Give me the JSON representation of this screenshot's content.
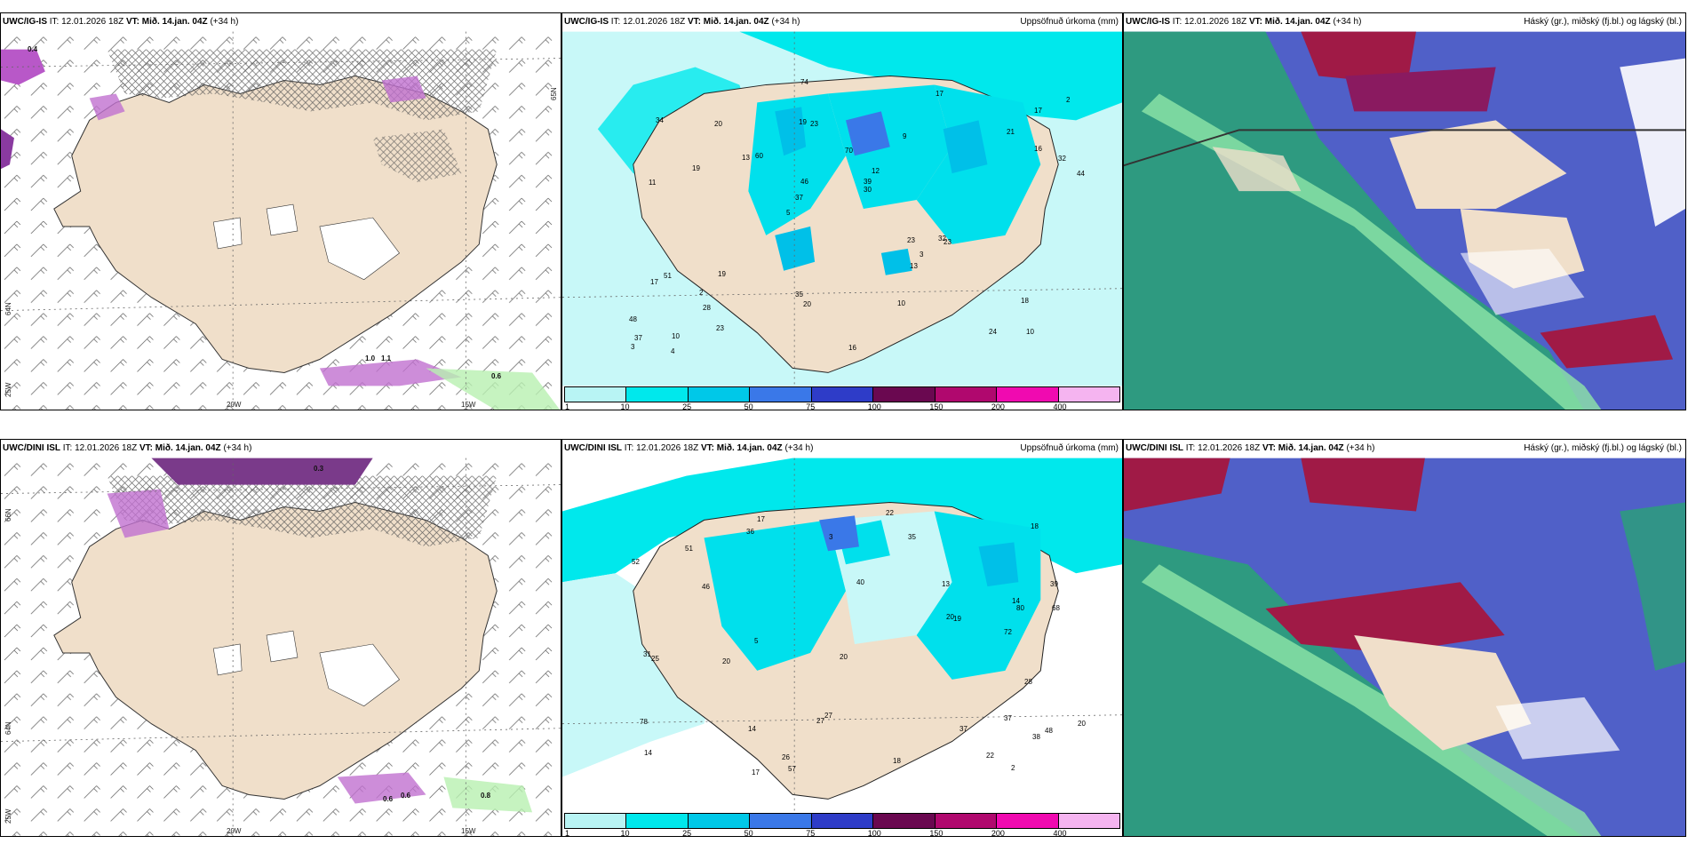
{
  "panels": {
    "tl": {
      "model": "UWC/IG-IS",
      "it": "IT: 12.01.2026 18Z",
      "vt": "VT: Mið. 14.jan. 04Z",
      "lead": "(+34 h)"
    },
    "tm": {
      "model": "UWC/IG-IS",
      "it": "IT: 12.01.2026 18Z",
      "vt": "VT: Mið. 14.jan. 04Z",
      "lead": "(+34 h)",
      "right": "Uppsöfnuð úrkoma (mm)"
    },
    "tr": {
      "model": "UWC/IG-IS",
      "it": "IT: 12.01.2026 18Z",
      "vt": "VT: Mið. 14.jan. 04Z",
      "lead": "(+34 h)",
      "right": "Háský (gr.), miðský (fj.bl.) og lágský (bl.)"
    },
    "bl": {
      "model": "UWC/DINI ISL",
      "it": "IT: 12.01.2026 18Z",
      "vt": "VT: Mið. 14.jan. 04Z",
      "lead": "(+34 h)"
    },
    "bm": {
      "model": "UWC/DINI ISL",
      "it": "IT: 12.01.2026 18Z",
      "vt": "VT: Mið. 14.jan. 04Z",
      "lead": "(+34 h)",
      "right": "Uppsöfnuð úrkoma (mm)"
    },
    "br": {
      "model": "UWC/DINI ISL",
      "it": "IT: 12.01.2026 18Z",
      "vt": "VT: Mið. 14.jan. 04Z",
      "lead": "(+34 h)",
      "right": "Háský (gr.), miðský (fj.bl.) og lágský (bl.)"
    }
  },
  "axes": {
    "lat65": "65N",
    "lat64": "64N",
    "lat66": "66N",
    "lon25": "25W",
    "lon20": "20W",
    "lon15": "15W"
  },
  "colorbar": {
    "labels": [
      "1",
      "10",
      "25",
      "50",
      "75",
      "100",
      "150",
      "200",
      "400"
    ],
    "colors": [
      "#b8f4f4",
      "#00e8ec",
      "#00c8e8",
      "#3a78e8",
      "#2e3cc8",
      "#6a0850",
      "#b0086e",
      "#f00ab0",
      "#f5b4f0"
    ]
  },
  "wind_values": {
    "tl": [
      "0.4",
      "1.0",
      "1.1",
      "0.6"
    ],
    "bl": [
      "0.3",
      "0.6",
      "0.6",
      "0.8"
    ]
  },
  "precip_values": {
    "tm": [
      "10",
      "11",
      "17",
      "5",
      "9",
      "10",
      "19",
      "70",
      "51",
      "60",
      "48",
      "28",
      "23",
      "12",
      "23",
      "34",
      "74",
      "44",
      "23",
      "16",
      "37",
      "35",
      "46",
      "20",
      "17",
      "19",
      "24",
      "18",
      "32",
      "16",
      "13",
      "19",
      "13",
      "23",
      "32",
      "39",
      "37",
      "20",
      "30",
      "17",
      "21",
      "2",
      "3",
      "10",
      "2",
      "4",
      "3"
    ],
    "bm": [
      "37",
      "39",
      "48",
      "40",
      "14",
      "17",
      "14",
      "14",
      "18",
      "46",
      "68",
      "52",
      "72",
      "57",
      "78",
      "51",
      "38",
      "36",
      "27",
      "80",
      "31",
      "25",
      "18",
      "20",
      "26",
      "27",
      "22",
      "35",
      "13",
      "20",
      "20",
      "37",
      "17",
      "20",
      "28",
      "22",
      "19",
      "3",
      "2",
      "5"
    ]
  },
  "colors": {
    "land": "#f0dfca",
    "sea": "#ffffff",
    "cloud_high": "#a01a46",
    "cloud_mid": "#5060c8",
    "cloud_low": "#2e9a80"
  }
}
